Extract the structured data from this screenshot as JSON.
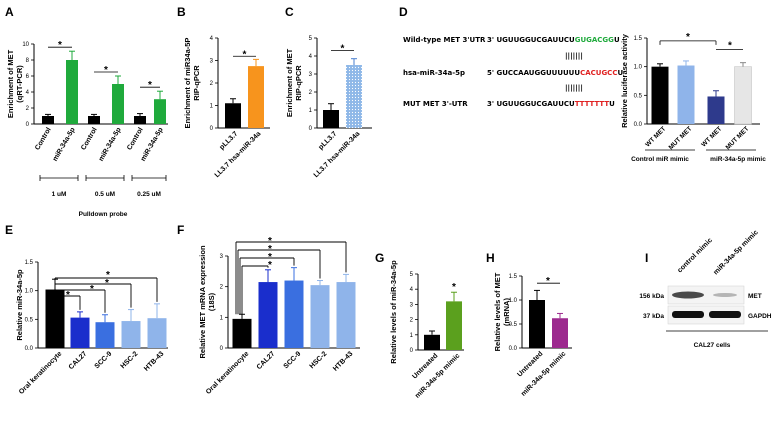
{
  "colors": {
    "black": "#000000",
    "green": "#1faa3c",
    "orange": "#f7941d",
    "dark_blue": "#1a2ecc",
    "mid_blue": "#3a6fe0",
    "light_blue": "#8fb4ea",
    "red": "#e02020",
    "green_bar": "#5ba01e",
    "purple": "#9c2a8e",
    "light_gray": "#e6e6e6",
    "wt_blue": "#2e3a8c",
    "dotted_blue": "#8fb8e8"
  },
  "chart_data": [
    {
      "panel": "A",
      "type": "bar",
      "ylabel": "Enrichment of MET (qRT-PCR)",
      "ylim": [
        0,
        10
      ],
      "yticks": [
        0,
        2,
        4,
        6,
        8,
        10
      ],
      "categories": [
        "Control",
        "miR-34a-5p",
        "Control",
        "miR-34a-5p",
        "Control",
        "miR-34a-5p"
      ],
      "values": [
        1.0,
        8.0,
        1.0,
        5.0,
        1.0,
        3.1
      ],
      "errors": [
        0.2,
        1.1,
        0.2,
        1.0,
        0.3,
        1.0
      ],
      "colors": [
        "black",
        "green",
        "black",
        "green",
        "black",
        "green"
      ],
      "significance": [
        "*",
        "*",
        "*"
      ],
      "groups": [
        "1 uM",
        "0.5 uM",
        "0.25 uM"
      ],
      "group_title": "Pulldown probe"
    },
    {
      "panel": "B",
      "type": "bar",
      "ylabel": "Enrichment of miR34a-5P RIP-qPCR",
      "ylim": [
        0,
        4
      ],
      "yticks": [
        0,
        1,
        2,
        3,
        4
      ],
      "categories": [
        "pLL3.7",
        "LL3.7 hsa-miR-34a"
      ],
      "values": [
        1.1,
        2.75
      ],
      "errors": [
        0.2,
        0.3
      ],
      "colors": [
        "black",
        "orange"
      ],
      "significance": [
        "*"
      ]
    },
    {
      "panel": "C",
      "type": "bar",
      "ylabel": "Enrichment of MET RIP-qPCR",
      "ylim": [
        0,
        5
      ],
      "yticks": [
        0,
        1,
        2,
        3,
        4,
        5
      ],
      "categories": [
        "pLL3.7",
        "LL3.7 hsa-miR-34a"
      ],
      "values": [
        1.0,
        3.5
      ],
      "errors": [
        0.35,
        0.35
      ],
      "colors": [
        "black",
        "dotted_blue"
      ],
      "significance": [
        "*"
      ]
    },
    {
      "panel": "D",
      "type": "bar",
      "ylabel": "Relative luciferase activity",
      "ylim": [
        0,
        1.5
      ],
      "yticks": [
        0.0,
        0.5,
        1.0,
        1.5
      ],
      "categories": [
        "WT MET",
        "MUT MET",
        "WT MET",
        "MUT MET"
      ],
      "values": [
        1.0,
        1.02,
        0.48,
        1.0
      ],
      "errors": [
        0.05,
        0.08,
        0.1,
        0.07
      ],
      "colors": [
        "black",
        "light_blue",
        "wt_blue",
        "light_gray"
      ],
      "significance": [
        "*",
        "*"
      ],
      "groups": [
        "Control miR mimic",
        "miR-34a-5p mimic"
      ]
    },
    {
      "panel": "E",
      "type": "bar",
      "ylabel": "Relative miR-34a-5p",
      "ylim": [
        0,
        1.5
      ],
      "yticks": [
        0.0,
        0.5,
        1.0,
        1.5
      ],
      "categories": [
        "Oral keratinocyte",
        "CAL27",
        "SCC-9",
        "HSC-2",
        "HTB-43"
      ],
      "values": [
        1.02,
        0.53,
        0.45,
        0.47,
        0.52
      ],
      "errors": [
        0.18,
        0.1,
        0.13,
        0.2,
        0.25
      ],
      "colors": [
        "black",
        "dark_blue",
        "mid_blue",
        "light_blue",
        "light_blue"
      ],
      "significance": [
        "*",
        "*",
        "*",
        "*"
      ]
    },
    {
      "panel": "F",
      "type": "bar",
      "ylabel": "Relative MET mRNA expression (18S)",
      "ylim": [
        0,
        3
      ],
      "yticks": [
        0,
        1,
        2,
        3
      ],
      "categories": [
        "Oral keratinocyte",
        "CAL27",
        "SCC-9",
        "HSC-2",
        "HTB-43"
      ],
      "values": [
        0.95,
        2.15,
        2.2,
        2.05,
        2.15
      ],
      "errors": [
        0.15,
        0.4,
        0.42,
        0.15,
        0.25
      ],
      "colors": [
        "black",
        "dark_blue",
        "mid_blue",
        "light_blue",
        "light_blue"
      ],
      "significance": [
        "*",
        "*",
        "*",
        "*"
      ]
    },
    {
      "panel": "G",
      "type": "bar",
      "ylabel": "Relative levels of miR-34a-5p",
      "ylim": [
        0,
        5
      ],
      "yticks": [
        0,
        1,
        2,
        3,
        4,
        5
      ],
      "categories": [
        "Untreated",
        "miR-34a-5p mimic"
      ],
      "values": [
        1.0,
        3.2
      ],
      "errors": [
        0.25,
        0.6
      ],
      "colors": [
        "black",
        "green_bar"
      ],
      "significance": [
        "*"
      ]
    },
    {
      "panel": "H",
      "type": "bar",
      "ylabel": "Relative levels of MET (mRNA)",
      "ylim": [
        0,
        1.5
      ],
      "yticks": [
        0.0,
        0.5,
        1.0,
        1.5
      ],
      "categories": [
        "Untreated",
        "miR-34a-5p mimic"
      ],
      "values": [
        1.0,
        0.62
      ],
      "errors": [
        0.2,
        0.1
      ],
      "colors": [
        "black",
        "purple"
      ],
      "significance": [
        "*"
      ]
    }
  ],
  "panels": {
    "A": "A",
    "B": "B",
    "C": "C",
    "D": "D",
    "E": "E",
    "F": "F",
    "G": "G",
    "H": "H",
    "I": "I"
  },
  "panelD_seq": {
    "wt_label": "Wild-type MET 3'UTR",
    "wt_prefix": "3' UGUUGGUCGAUUCU",
    "wt_site": "GUGACGG",
    "wt_end": "U",
    "mir_label": "hsa-miR-34a-5p",
    "mir_prefix": "5' GUCCAAUGGUUUUUU",
    "mir_site": "CACUGCC",
    "mir_end": "U",
    "mut_label": "MUT MET 3'-UTR",
    "mut_prefix": "3' UGUUGGUCGAUUCU",
    "mut_site": "TTTTTTT",
    "mut_end": "U",
    "pairs": "|||||||"
  },
  "panelI": {
    "lanes": [
      "control mimic",
      "miR-34a-5p mimic"
    ],
    "sizes": [
      "156 kDa",
      "37  kDa"
    ],
    "proteins": [
      "MET",
      "GAPDH"
    ],
    "cell_line": "CAL27 cells"
  }
}
